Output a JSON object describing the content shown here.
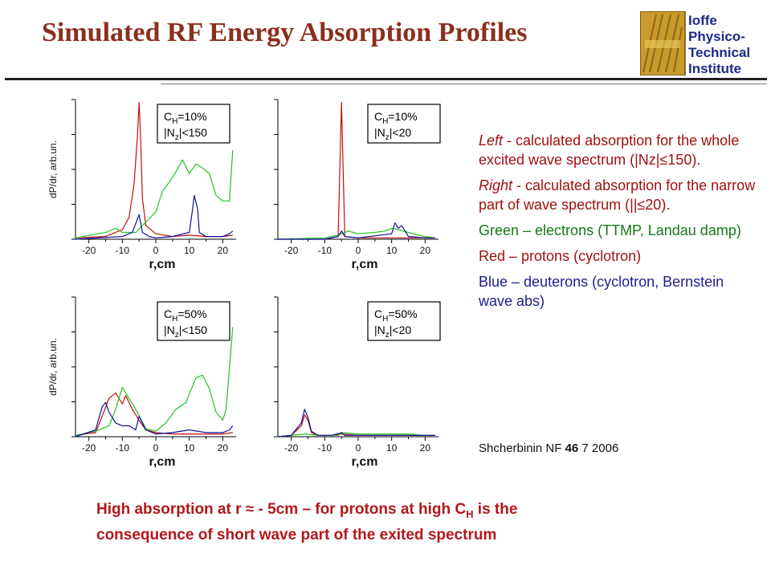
{
  "slide": {
    "title": "Simulated RF Energy Absorption Profiles",
    "logo_lines": [
      "Ioffe",
      "Physico-",
      "Technical",
      "Institute"
    ],
    "notes": [
      {
        "prefix": "Left",
        "text": " - calculated absorption for the whole excited wave spectrum (|Nz|≤150)."
      },
      {
        "prefix": "Right",
        "text": " - calculated absorption for the narrow part of wave spectrum (||≤20)."
      },
      {
        "text": "Green – electrons (TTMP, Landau damp)"
      },
      {
        "text": "Red – protons (cyclotron)"
      },
      {
        "text": "Blue – deuterons  (cyclotron, Bernstein wave abs)"
      }
    ],
    "source": {
      "author": "Shcherbinin NF ",
      "volume": "46",
      "rest": " 7 2006"
    },
    "conclusion_line1": "High absorption at r ≈ - 5cm – for protons at high C",
    "conclusion_sub": "H",
    "conclusion_tail": " is the",
    "conclusion_line2": "consequence of short wave part of the exited spectrum"
  },
  "colors": {
    "title": "#8b2f1d",
    "red": "#c01010",
    "green": "#22c422",
    "blue": "#1010a0",
    "text_red": "#a01010",
    "text_green": "#127a12",
    "text_blue": "#1d1d8c"
  },
  "chart_data": [
    {
      "type": "line",
      "xlabel": "r,cm",
      "ylabel": "dP/dr, arb.un.",
      "xticks": [
        -20,
        -10,
        0,
        10,
        20
      ],
      "xlim": [
        -24,
        24
      ],
      "ylim": [
        0,
        1
      ],
      "legend": {
        "ch": "=10%",
        "nz": "<150"
      },
      "series": [
        {
          "color": "red",
          "x": [
            -24,
            -15,
            -10,
            -8,
            -6.5,
            -5.5,
            -5,
            -4.5,
            -4,
            -3,
            0,
            5,
            10,
            15,
            20,
            23
          ],
          "y": [
            0.01,
            0.02,
            0.07,
            0.16,
            0.4,
            0.75,
            1.0,
            0.7,
            0.3,
            0.1,
            0.04,
            0.02,
            0.03,
            0.02,
            0.02,
            0.03
          ]
        },
        {
          "color": "green",
          "x": [
            -24,
            -15,
            -12,
            -10,
            -6,
            0,
            2,
            5,
            8,
            10,
            12,
            14,
            16,
            18,
            20,
            22,
            23
          ],
          "y": [
            0.01,
            0.05,
            0.08,
            0.05,
            0.05,
            0.2,
            0.35,
            0.45,
            0.58,
            0.48,
            0.55,
            0.52,
            0.48,
            0.32,
            0.28,
            0.28,
            0.65
          ]
        },
        {
          "color": "blue",
          "x": [
            -24,
            -10,
            -7,
            -5,
            -4,
            -2,
            0,
            5,
            10,
            11,
            11.5,
            12.5,
            13,
            15,
            20,
            22,
            23
          ],
          "y": [
            0.0,
            0.02,
            0.05,
            0.18,
            0.05,
            0.02,
            0.01,
            0.02,
            0.05,
            0.22,
            0.32,
            0.22,
            0.05,
            0.02,
            0.02,
            0.04,
            0.06
          ]
        }
      ]
    },
    {
      "type": "line",
      "xlabel": "r,cm",
      "ylabel": "",
      "xticks": [
        -20,
        -10,
        0,
        10,
        20
      ],
      "xlim": [
        -24,
        24
      ],
      "ylim": [
        0,
        1
      ],
      "legend": {
        "ch": "=10%",
        "nz": "<20"
      },
      "series": [
        {
          "color": "red",
          "x": [
            -24,
            -10,
            -6,
            -5.5,
            -5,
            -4.5,
            -4,
            0,
            10,
            20,
            23
          ],
          "y": [
            0.0,
            0.0,
            0.02,
            0.5,
            1.0,
            0.5,
            0.02,
            0.01,
            0.01,
            0.01,
            0.01
          ]
        },
        {
          "color": "green",
          "x": [
            -24,
            -10,
            -6,
            -3,
            0,
            5,
            8,
            10,
            12,
            15,
            18,
            20,
            23
          ],
          "y": [
            0.0,
            0.01,
            0.03,
            0.06,
            0.04,
            0.05,
            0.06,
            0.08,
            0.07,
            0.05,
            0.03,
            0.02,
            0.01
          ]
        },
        {
          "color": "blue",
          "x": [
            -24,
            -10,
            -6,
            -5,
            -4,
            0,
            10,
            11,
            12,
            13,
            15,
            20,
            23
          ],
          "y": [
            0.0,
            0.0,
            0.02,
            0.06,
            0.02,
            0.01,
            0.04,
            0.12,
            0.08,
            0.1,
            0.02,
            0.01,
            0.01
          ]
        }
      ]
    },
    {
      "type": "line",
      "xlabel": "r,cm",
      "ylabel": "dP/dr, arb.un.",
      "xticks": [
        -20,
        -10,
        0,
        10,
        20
      ],
      "xlim": [
        -24,
        24
      ],
      "ylim": [
        0,
        1
      ],
      "legend": {
        "ch": "=50%",
        "nz": "<150"
      },
      "series": [
        {
          "color": "red",
          "x": [
            -24,
            -18,
            -16,
            -14,
            -12,
            -10,
            -9,
            -7,
            -5,
            -3,
            0,
            5,
            10,
            15,
            20,
            23
          ],
          "y": [
            0.01,
            0.03,
            0.15,
            0.28,
            0.32,
            0.24,
            0.3,
            0.2,
            0.12,
            0.05,
            0.03,
            0.02,
            0.02,
            0.02,
            0.02,
            0.03
          ]
        },
        {
          "color": "green",
          "x": [
            -24,
            -18,
            -14,
            -12,
            -10,
            -8,
            -6,
            -3,
            0,
            3,
            6,
            9,
            12,
            14,
            16,
            18,
            20,
            21,
            22,
            23
          ],
          "y": [
            0.01,
            0.04,
            0.08,
            0.2,
            0.36,
            0.28,
            0.2,
            0.06,
            0.04,
            0.1,
            0.2,
            0.25,
            0.43,
            0.45,
            0.35,
            0.18,
            0.12,
            0.2,
            0.5,
            0.8
          ]
        },
        {
          "color": "blue",
          "x": [
            -24,
            -18,
            -16,
            -15,
            -14,
            -12,
            -10,
            -8,
            -6,
            -5,
            -3,
            0,
            5,
            10,
            15,
            20,
            22,
            23
          ],
          "y": [
            0.0,
            0.05,
            0.22,
            0.25,
            0.18,
            0.1,
            0.08,
            0.08,
            0.05,
            0.15,
            0.05,
            0.02,
            0.03,
            0.05,
            0.03,
            0.03,
            0.05,
            0.08
          ]
        }
      ]
    },
    {
      "type": "line",
      "xlabel": "r,cm",
      "ylabel": "",
      "xticks": [
        -20,
        -10,
        0,
        10,
        20
      ],
      "xlim": [
        -24,
        24
      ],
      "ylim": [
        0,
        1
      ],
      "legend": {
        "ch": "=50%",
        "nz": "<20"
      },
      "series": [
        {
          "color": "red",
          "x": [
            -24,
            -20,
            -17,
            -16,
            -15,
            -14,
            -12,
            -8,
            -5,
            0,
            10,
            20,
            23
          ],
          "y": [
            0.0,
            0.01,
            0.08,
            0.16,
            0.12,
            0.03,
            0.01,
            0.01,
            0.02,
            0.01,
            0.01,
            0.01,
            0.01
          ]
        },
        {
          "color": "green",
          "x": [
            -24,
            -20,
            -16,
            -12,
            -6,
            -5,
            0,
            5,
            10,
            15,
            20,
            23
          ],
          "y": [
            0.0,
            0.01,
            0.02,
            0.01,
            0.01,
            0.03,
            0.02,
            0.02,
            0.02,
            0.02,
            0.01,
            0.01
          ]
        },
        {
          "color": "blue",
          "x": [
            -24,
            -20,
            -17,
            -16,
            -15,
            -14,
            -12,
            -8,
            -5,
            -4,
            0,
            10,
            20,
            23
          ],
          "y": [
            0.0,
            0.01,
            0.1,
            0.2,
            0.14,
            0.04,
            0.01,
            0.01,
            0.03,
            0.01,
            0.01,
            0.01,
            0.01,
            0.01
          ]
        }
      ]
    }
  ]
}
